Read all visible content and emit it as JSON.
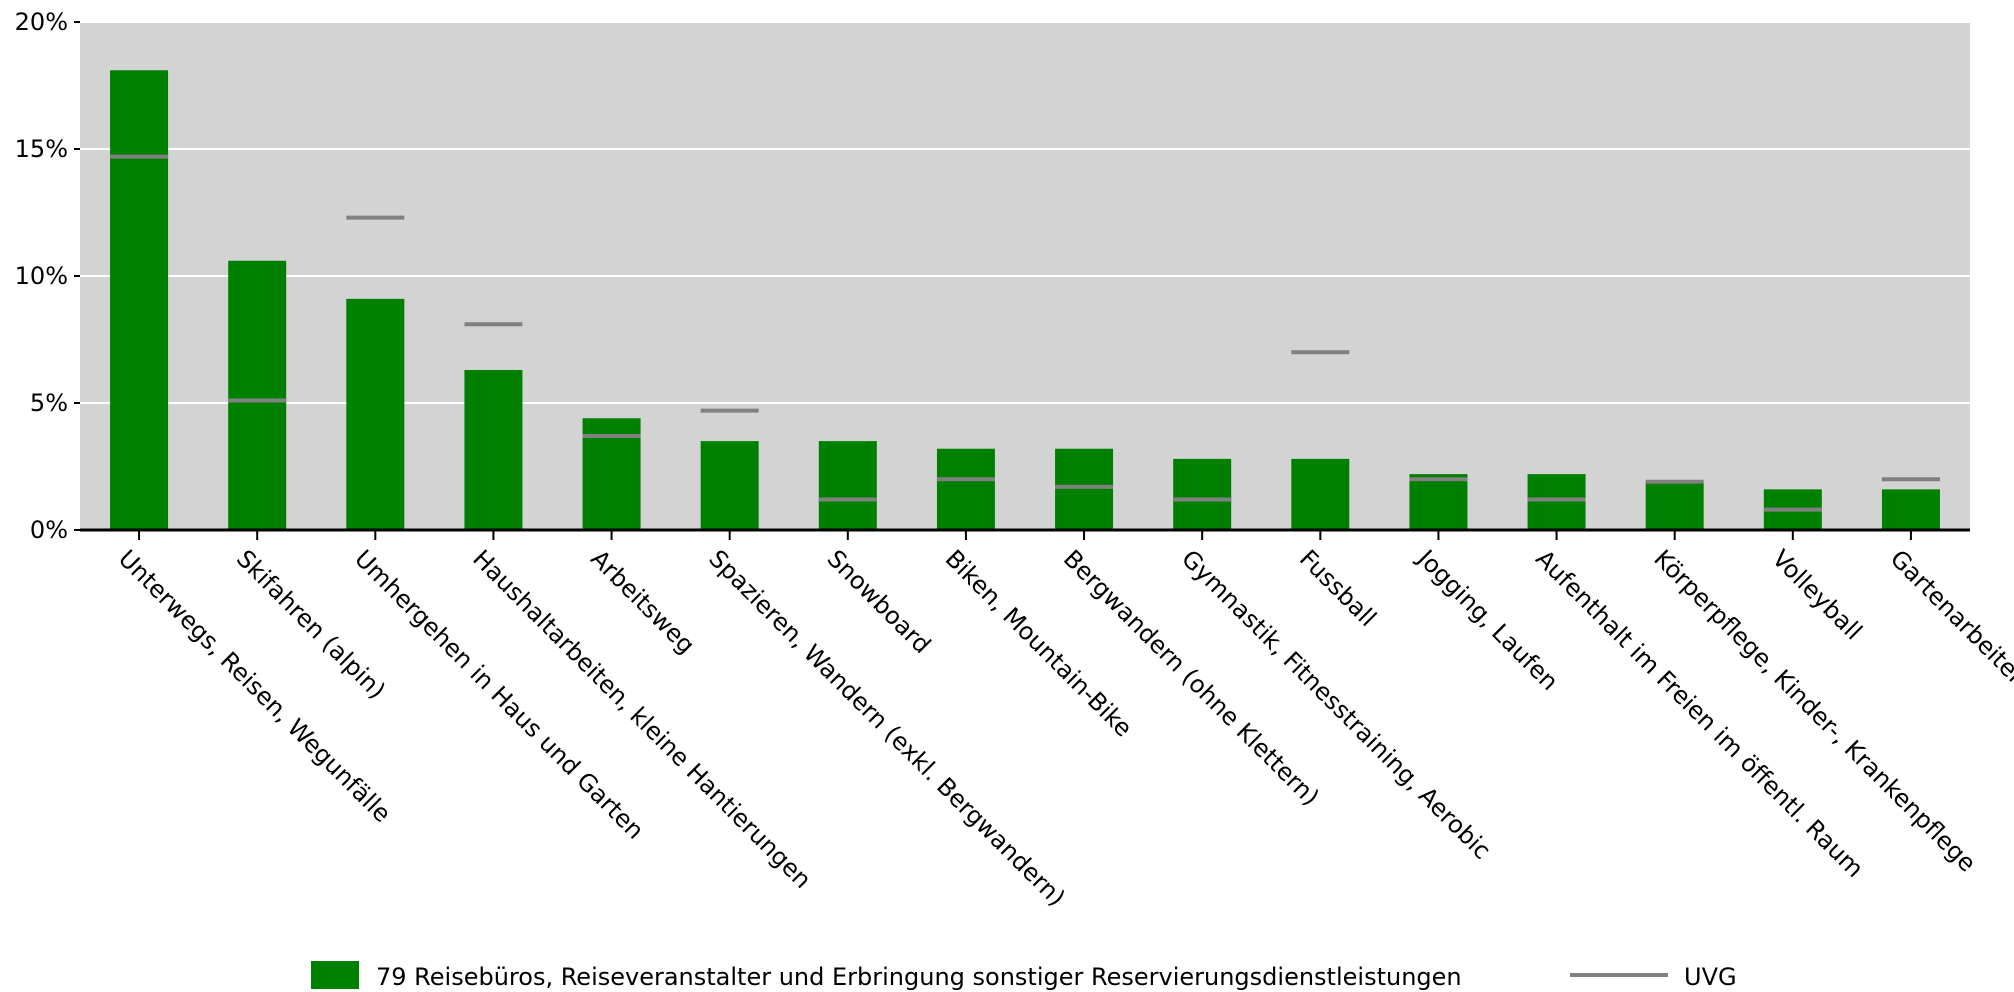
{
  "chart_data": {
    "type": "bar",
    "categories": [
      "Unterwegs, Reisen, Wegunfälle",
      "Skifahren (alpin)",
      "Umhergehen in Haus und Garten",
      "Haushaltarbeiten, kleine Hantierungen",
      "Arbeitsweg",
      "Spazieren, Wandern (exkl. Bergwandern)",
      "Snowboard",
      "Biken, Mountain-Bike",
      "Bergwandern (ohne Klettern)",
      "Gymnastik, Fitnesstraining, Aerobic",
      "Fussball",
      "Jogging, Laufen",
      "Aufenthalt im Freien im öffentl. Raum",
      "Körperpflege, Kinder-, Krankenpflege",
      "Volleyball",
      "Gartenarbeiten"
    ],
    "series": [
      {
        "name": "79 Reisebüros, Reiseveranstalter und Erbringung sonstiger Reservierungsdienstleistungen",
        "type": "bar",
        "color": "#008000",
        "values": [
          18.1,
          10.6,
          9.1,
          6.3,
          4.4,
          3.5,
          3.5,
          3.2,
          3.2,
          2.8,
          2.8,
          2.2,
          2.2,
          1.9,
          1.6,
          1.6
        ]
      },
      {
        "name": "UVG",
        "type": "marker",
        "color": "#808080",
        "values": [
          14.7,
          5.1,
          12.3,
          8.1,
          3.7,
          4.7,
          1.2,
          2.0,
          1.7,
          1.2,
          7.0,
          2.0,
          1.2,
          1.9,
          0.8,
          2.0
        ]
      }
    ],
    "y_ticks": [
      "0%",
      "5%",
      "10%",
      "15%",
      "20%"
    ],
    "ylim": [
      0,
      20
    ],
    "grid": true,
    "legend_position": "bottom",
    "colors": {
      "plot_background": "#d3d3d3",
      "gridline": "#ffffff",
      "axis": "#000000"
    }
  }
}
